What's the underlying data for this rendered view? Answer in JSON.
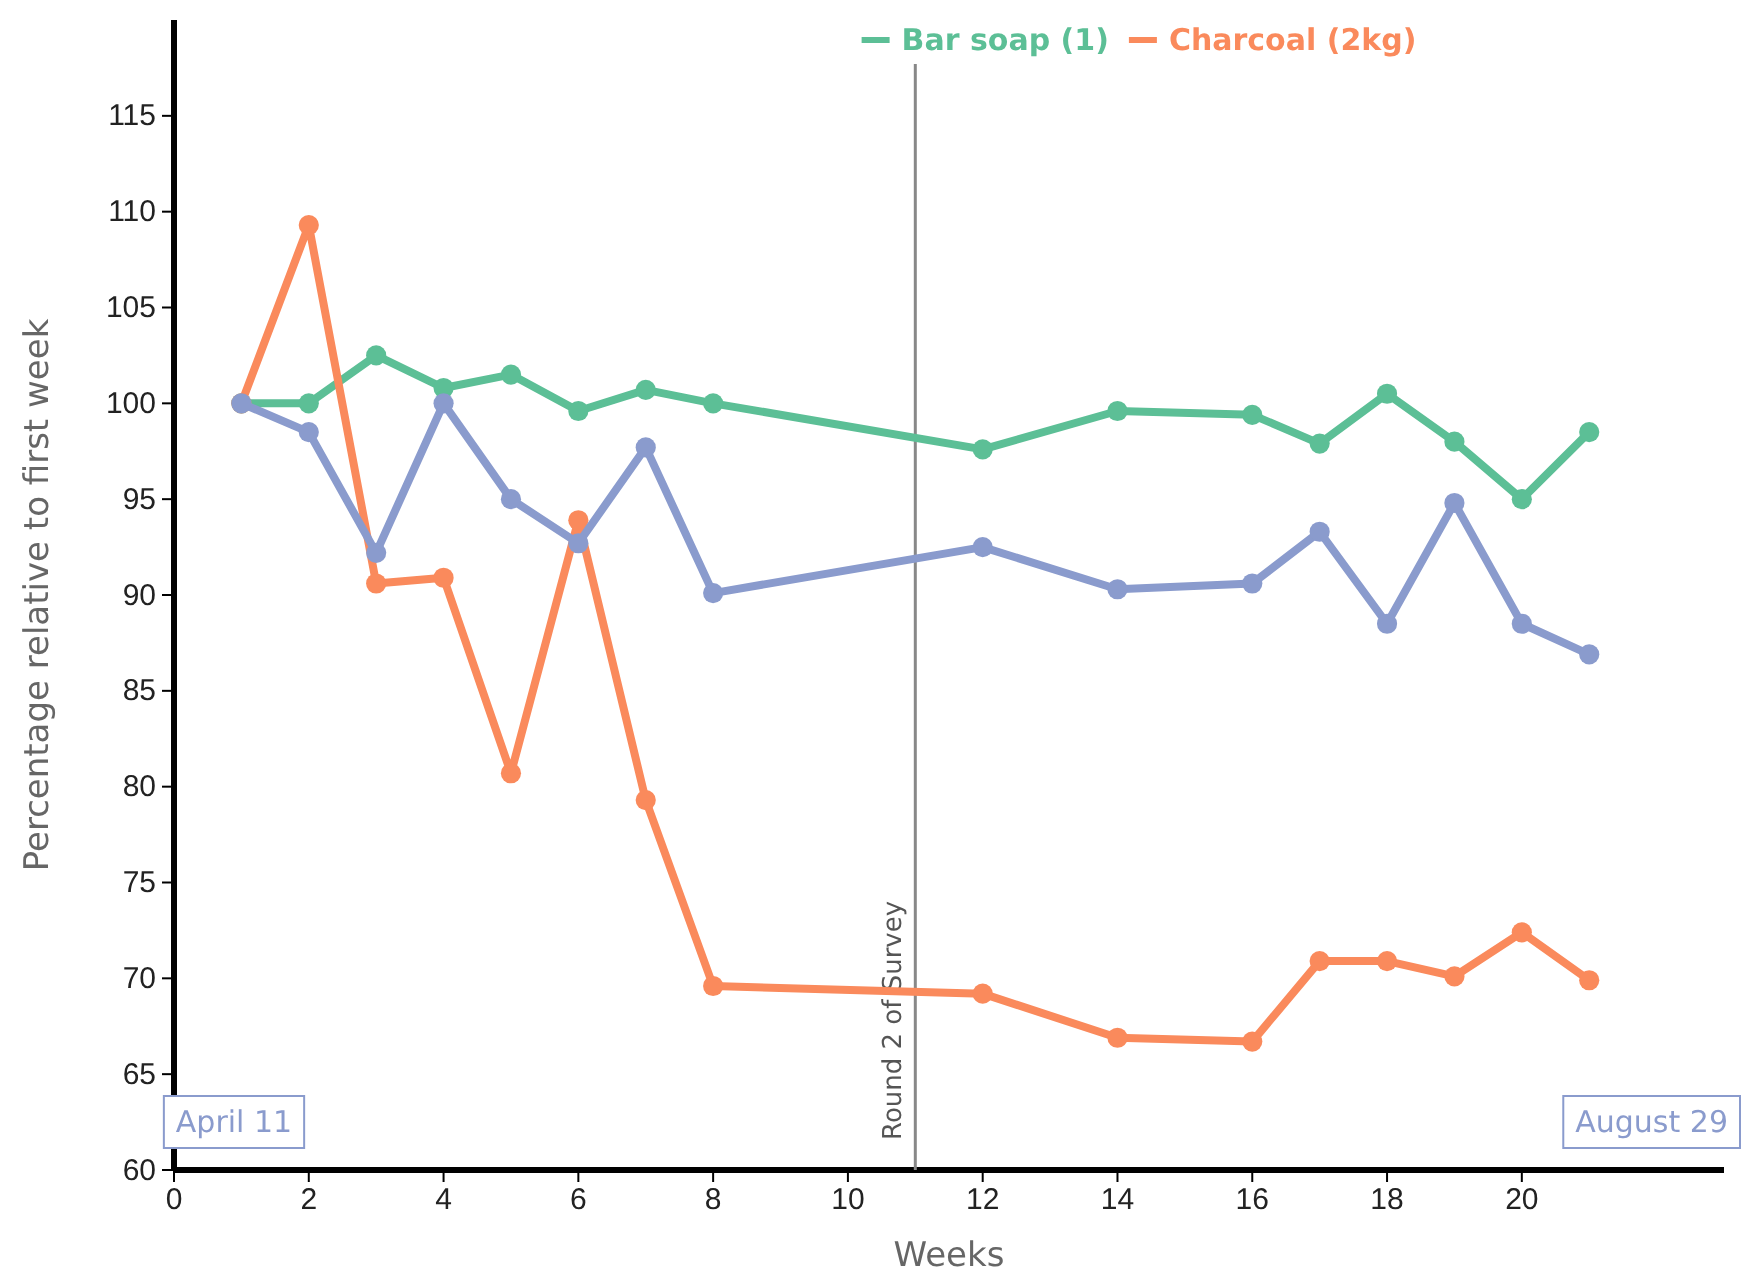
{
  "chart_data": {
    "type": "line",
    "xlabel": "Weeks",
    "ylabel": "Percentage relative to first week",
    "xlim": [
      0,
      23
    ],
    "xticks": [
      0,
      2,
      4,
      6,
      8,
      10,
      12,
      14,
      16,
      18,
      20
    ],
    "ylim": [
      60,
      120
    ],
    "yticks": [
      60,
      65,
      70,
      75,
      80,
      85,
      90,
      95,
      100,
      105,
      110,
      115
    ],
    "x": [
      1,
      2,
      3,
      4,
      5,
      6,
      7,
      8,
      12,
      14,
      16,
      17,
      18,
      19,
      20,
      21
    ],
    "series": [
      {
        "name": "Bar soap (1)",
        "color": "#5cbf96",
        "values": [
          100,
          100,
          102.5,
          100.8,
          101.5,
          99.6,
          100.7,
          100,
          97.6,
          99.6,
          99.4,
          97.9,
          100.5,
          98,
          95,
          98.5
        ]
      },
      {
        "name": "Charcoal (2kg)",
        "color": "#fa8a5c",
        "values": [
          100,
          109.3,
          90.6,
          90.9,
          80.7,
          93.9,
          79.3,
          69.6,
          69.2,
          66.9,
          66.7,
          70.9,
          70.9,
          70.1,
          72.4,
          69.9
        ]
      },
      {
        "color": "#8a9bcd",
        "values": [
          100,
          98.5,
          92.2,
          100,
          95,
          92.7,
          97.7,
          90.1,
          92.5,
          90.3,
          90.6,
          93.3,
          88.5,
          94.8,
          88.5,
          86.9
        ]
      }
    ],
    "ref_lines": [
      {
        "axis": "x",
        "value": 11,
        "label": "Round 2 of Survey",
        "color": "#888888"
      }
    ],
    "annotations": [
      "April 11",
      "August 29"
    ],
    "marker": "circle",
    "line_style": "solid",
    "grid": false,
    "legend": "top"
  }
}
